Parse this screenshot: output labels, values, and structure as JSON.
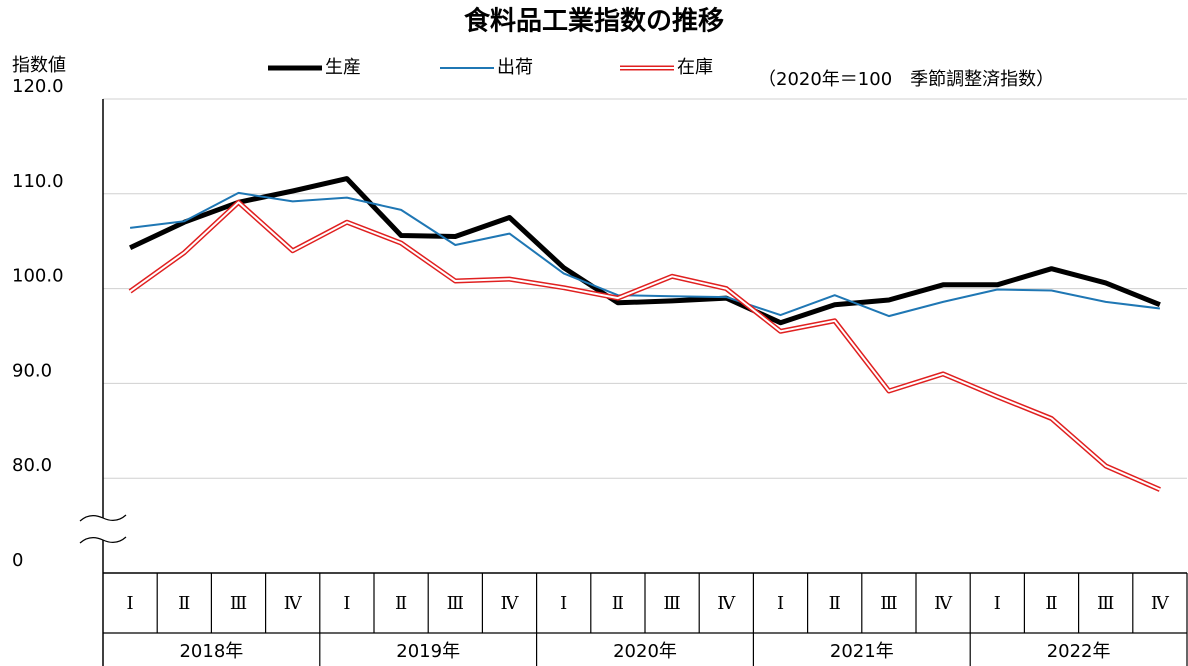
{
  "chart_data": {
    "type": "line",
    "title": "食料品工業指数の推移",
    "y_label": "指数値",
    "note": "（2020年＝100　季節調整済指数）",
    "categories": [
      "Ⅰ",
      "Ⅱ",
      "Ⅲ",
      "Ⅳ",
      "Ⅰ",
      "Ⅱ",
      "Ⅲ",
      "Ⅳ",
      "Ⅰ",
      "Ⅱ",
      "Ⅲ",
      "Ⅳ",
      "Ⅰ",
      "Ⅱ",
      "Ⅲ",
      "Ⅳ",
      "Ⅰ",
      "Ⅱ",
      "Ⅲ",
      "Ⅳ"
    ],
    "category_groups": [
      "2018年",
      "2019年",
      "2020年",
      "2021年",
      "2022年"
    ],
    "series": [
      {
        "name": "生産",
        "color": "#000000",
        "width": 5,
        "values": [
          104.3,
          107.0,
          109.1,
          110.3,
          111.6,
          105.6,
          105.5,
          107.5,
          102.2,
          98.5,
          98.7,
          99.0,
          96.4,
          98.3,
          98.8,
          100.4,
          100.4,
          102.1,
          100.6,
          98.3
        ]
      },
      {
        "name": "出荷",
        "color": "#1f77b4",
        "width": 2,
        "values": [
          106.4,
          107.1,
          110.1,
          109.2,
          109.6,
          108.3,
          104.6,
          105.8,
          101.6,
          99.3,
          99.2,
          99.1,
          97.2,
          99.3,
          97.1,
          98.6,
          99.9,
          99.8,
          98.6,
          97.9
        ]
      },
      {
        "name": "在庫",
        "color": "#e02020",
        "width": 5,
        "style": "double",
        "values": [
          99.7,
          103.8,
          109.1,
          104.0,
          107.0,
          104.8,
          100.8,
          101.0,
          100.1,
          99.0,
          101.3,
          100.0,
          95.5,
          96.6,
          89.2,
          91.0,
          88.6,
          86.3,
          81.3,
          78.8
        ]
      }
    ],
    "ylim": [
      0,
      120
    ],
    "yticks": [
      {
        "value": 0,
        "label": "0"
      },
      {
        "value": 80,
        "label": "80.0"
      },
      {
        "value": 90,
        "label": "90.0"
      },
      {
        "value": 100,
        "label": "100.0"
      },
      {
        "value": 110,
        "label": "110.0"
      },
      {
        "value": 120,
        "label": "120.0"
      }
    ],
    "y_break": true,
    "grid": true,
    "legend": "top"
  }
}
